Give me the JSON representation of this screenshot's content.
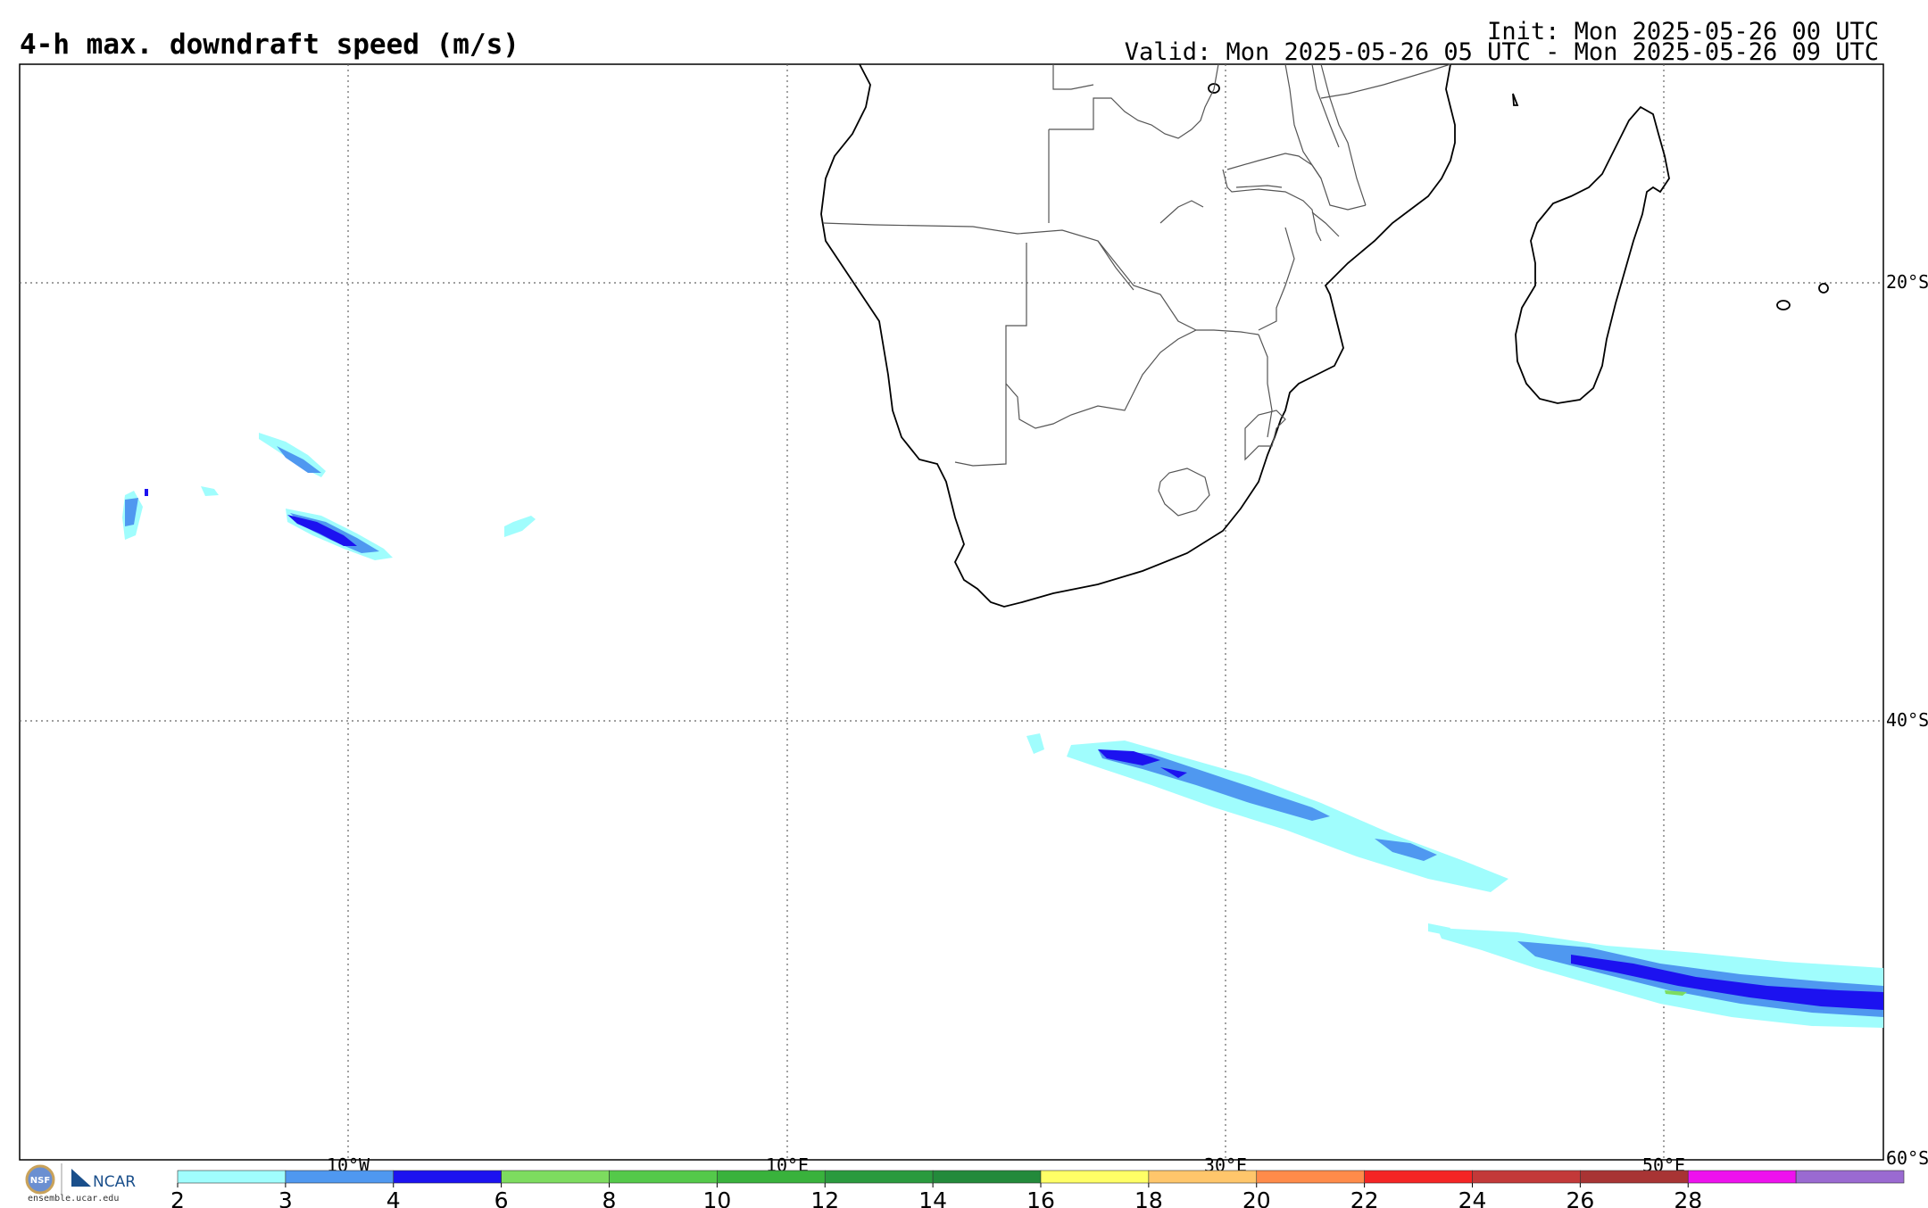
{
  "header": {
    "title": "4-h max. downdraft speed (m/s)",
    "init": "Init: Mon 2025-05-26 00 UTC",
    "valid": "Valid: Mon 2025-05-26 05 UTC - Mon 2025-05-26 09 UTC"
  },
  "map": {
    "lon_range": [
      -25,
      60
    ],
    "lat_range": [
      -60,
      -10
    ],
    "lat_labels": [
      "20°S",
      "40°S",
      "60°S"
    ],
    "lon_labels": [
      "10°W",
      "10°E",
      "30°E",
      "50°E"
    ],
    "gridlines": "dotted",
    "colors": {
      "coast": "#000000",
      "border": "#555555",
      "grid": "#666666"
    }
  },
  "colorbar": {
    "ticks": [
      "2",
      "3",
      "4",
      "6",
      "8",
      "10",
      "12",
      "14",
      "16",
      "18",
      "20",
      "22",
      "24",
      "26",
      "28"
    ],
    "colors": [
      "#a0fdfd",
      "#4f98f0",
      "#1c12f0",
      "#7ddc5f",
      "#54c94a",
      "#39b23c",
      "#2a9a3e",
      "#238a3b",
      "#ffff66",
      "#ffc66b",
      "#ff8b4a",
      "#f42424",
      "#c33939",
      "#a83434",
      "#ee11ee",
      "#9a6ad1"
    ]
  },
  "footer": {
    "logo_nsf": "NSF",
    "logo_ncar": "NCAR",
    "url": "ensemble.ucar.edu"
  }
}
